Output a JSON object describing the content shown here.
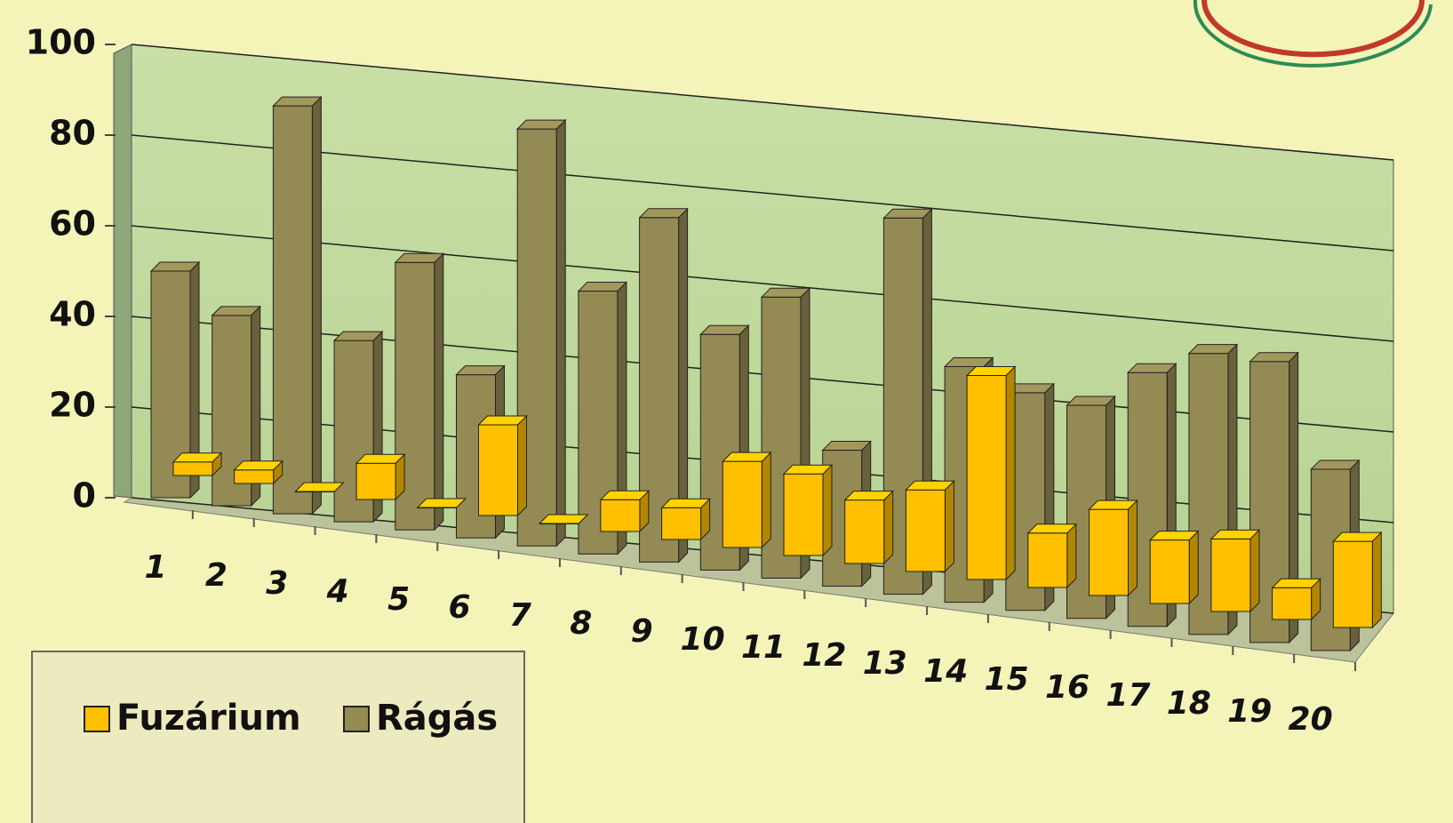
{
  "chart_data": {
    "type": "bar3d",
    "categories": [
      "1",
      "2",
      "3",
      "4",
      "5",
      "6",
      "7",
      "8",
      "9",
      "10",
      "11",
      "12",
      "13",
      "14",
      "15",
      "16",
      "17",
      "18",
      "19",
      "20"
    ],
    "series": [
      {
        "name": "Fuzárium",
        "color": "#ffc000",
        "values": [
          3,
          3,
          0,
          8,
          0,
          20,
          0,
          7,
          7,
          19,
          18,
          14,
          18,
          45,
          12,
          19,
          14,
          16,
          7,
          19
        ]
      },
      {
        "name": "Rágás",
        "color": "#948a54",
        "values": [
          50,
          42,
          90,
          40,
          59,
          36,
          92,
          58,
          76,
          52,
          62,
          30,
          83,
          52,
          48,
          47,
          56,
          62,
          62,
          40
        ]
      }
    ],
    "ylim": [
      0,
      100
    ],
    "yticks": [
      0,
      20,
      40,
      60,
      80,
      100
    ],
    "grid": true
  }
}
